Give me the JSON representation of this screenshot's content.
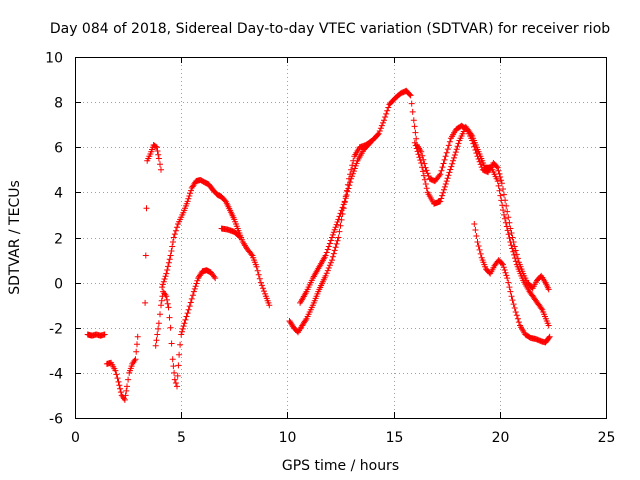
{
  "chart_data": {
    "type": "scatter",
    "title": "Day 084 of 2018, Sidereal Day-to-day VTEC variation (SDTVAR) for receiver riob",
    "xlabel": "GPS time / hours",
    "ylabel": "SDTVAR / TECUs",
    "xlim": [
      0,
      25
    ],
    "ylim": [
      -6,
      10
    ],
    "xticks": [
      0,
      5,
      10,
      15,
      20,
      25
    ],
    "yticks": [
      -6,
      -4,
      -2,
      0,
      2,
      4,
      6,
      8,
      10
    ],
    "grid": true,
    "marker": "+",
    "color": "#ff0000",
    "series": [
      {
        "name": "s01",
        "points": [
          [
            0.6,
            -2.3
          ],
          [
            0.8,
            -2.35
          ],
          [
            1.0,
            -2.3
          ],
          [
            1.2,
            -2.35
          ],
          [
            1.4,
            -2.3
          ]
        ]
      },
      {
        "name": "s02",
        "points": [
          [
            1.5,
            -3.6
          ],
          [
            1.7,
            -3.55
          ],
          [
            1.9,
            -3.9
          ],
          [
            2.05,
            -4.4
          ],
          [
            2.2,
            -5.0
          ],
          [
            2.35,
            -5.2
          ],
          [
            2.45,
            -4.6
          ],
          [
            2.55,
            -4.0
          ],
          [
            2.7,
            -3.6
          ],
          [
            2.85,
            -3.4
          ],
          [
            2.95,
            -2.4
          ]
        ]
      },
      {
        "name": "s03",
        "points": [
          [
            3.3,
            -0.9
          ],
          [
            3.4,
            5.4
          ],
          [
            3.55,
            5.7
          ],
          [
            3.7,
            6.1
          ],
          [
            3.85,
            6.0
          ],
          [
            3.95,
            5.5
          ],
          [
            4.05,
            5.0
          ]
        ]
      },
      {
        "name": "s04",
        "points": [
          [
            3.8,
            -2.8
          ],
          [
            3.95,
            -1.8
          ],
          [
            4.05,
            -1.0
          ],
          [
            4.15,
            -0.4
          ],
          [
            4.3,
            -0.6
          ],
          [
            4.4,
            -1.1
          ],
          [
            4.5,
            -2.0
          ],
          [
            4.6,
            -3.4
          ],
          [
            4.7,
            -4.3
          ],
          [
            4.8,
            -4.6
          ],
          [
            4.9,
            -3.2
          ],
          [
            5.0,
            -2.3
          ],
          [
            5.15,
            -1.8
          ],
          [
            5.35,
            -1.2
          ],
          [
            5.6,
            -0.4
          ],
          [
            5.8,
            0.2
          ],
          [
            6.0,
            0.5
          ],
          [
            6.2,
            0.55
          ],
          [
            6.4,
            0.45
          ],
          [
            6.6,
            0.2
          ]
        ]
      },
      {
        "name": "s05",
        "points": [
          [
            4.1,
            -0.2
          ],
          [
            4.3,
            0.4
          ],
          [
            4.5,
            1.2
          ],
          [
            4.65,
            2.0
          ],
          [
            4.85,
            2.6
          ],
          [
            5.1,
            3.1
          ],
          [
            5.3,
            3.6
          ],
          [
            5.5,
            4.2
          ],
          [
            5.7,
            4.5
          ],
          [
            5.9,
            4.55
          ],
          [
            6.1,
            4.45
          ],
          [
            6.3,
            4.35
          ],
          [
            6.5,
            4.1
          ],
          [
            6.7,
            3.9
          ],
          [
            6.9,
            3.8
          ],
          [
            7.1,
            3.6
          ],
          [
            7.3,
            3.2
          ],
          [
            7.5,
            2.8
          ],
          [
            7.7,
            2.3
          ],
          [
            7.9,
            1.8
          ],
          [
            8.1,
            1.5
          ],
          [
            8.35,
            1.2
          ],
          [
            8.55,
            0.7
          ],
          [
            8.75,
            0.0
          ],
          [
            8.95,
            -0.5
          ],
          [
            9.15,
            -1.0
          ]
        ]
      },
      {
        "name": "s06",
        "points": [
          [
            6.9,
            2.4
          ],
          [
            7.2,
            2.35
          ],
          [
            7.5,
            2.25
          ],
          [
            7.8,
            2.0
          ]
        ]
      },
      {
        "name": "s07",
        "points": [
          [
            10.1,
            -1.7
          ],
          [
            10.3,
            -2.0
          ],
          [
            10.5,
            -2.2
          ],
          [
            10.7,
            -1.9
          ],
          [
            10.9,
            -1.6
          ],
          [
            11.2,
            -1.0
          ],
          [
            11.5,
            -0.3
          ],
          [
            11.8,
            0.3
          ],
          [
            12.1,
            1.0
          ],
          [
            12.4,
            2.0
          ],
          [
            12.65,
            3.3
          ],
          [
            12.9,
            4.6
          ],
          [
            13.15,
            5.6
          ],
          [
            13.4,
            6.0
          ],
          [
            13.7,
            6.1
          ],
          [
            14.0,
            6.3
          ],
          [
            14.3,
            6.6
          ],
          [
            14.55,
            7.2
          ],
          [
            14.8,
            7.9
          ],
          [
            15.1,
            8.2
          ],
          [
            15.35,
            8.4
          ],
          [
            15.6,
            8.5
          ],
          [
            15.8,
            8.3
          ],
          [
            15.95,
            7.2
          ],
          [
            16.1,
            6.1
          ],
          [
            16.3,
            5.8
          ],
          [
            16.5,
            5.1
          ],
          [
            16.7,
            4.6
          ],
          [
            16.95,
            4.5
          ],
          [
            17.2,
            4.8
          ],
          [
            17.45,
            5.6
          ],
          [
            17.7,
            6.4
          ],
          [
            17.95,
            6.8
          ],
          [
            18.2,
            6.95
          ],
          [
            18.45,
            6.8
          ],
          [
            18.7,
            6.3
          ],
          [
            18.95,
            5.6
          ],
          [
            19.2,
            5.0
          ],
          [
            19.45,
            4.9
          ],
          [
            19.7,
            5.3
          ],
          [
            19.9,
            5.1
          ],
          [
            20.1,
            4.4
          ],
          [
            20.3,
            3.4
          ],
          [
            20.5,
            2.4
          ],
          [
            20.7,
            1.6
          ],
          [
            20.9,
            0.9
          ],
          [
            21.1,
            0.4
          ],
          [
            21.3,
            0.0
          ],
          [
            21.55,
            -0.25
          ],
          [
            21.75,
            0.1
          ],
          [
            21.95,
            0.3
          ],
          [
            22.15,
            0.0
          ],
          [
            22.3,
            -0.3
          ]
        ]
      },
      {
        "name": "s08",
        "points": [
          [
            10.6,
            -0.9
          ],
          [
            10.9,
            -0.4
          ],
          [
            11.2,
            0.2
          ],
          [
            11.5,
            0.7
          ],
          [
            11.8,
            1.2
          ],
          [
            12.1,
            2.0
          ],
          [
            12.4,
            2.8
          ],
          [
            12.7,
            3.6
          ],
          [
            13.0,
            4.6
          ],
          [
            13.3,
            5.4
          ],
          [
            13.6,
            5.9
          ],
          [
            13.9,
            6.2
          ]
        ]
      },
      {
        "name": "s09",
        "points": [
          [
            16.0,
            6.2
          ],
          [
            16.3,
            5.3
          ],
          [
            16.6,
            4.0
          ],
          [
            16.9,
            3.5
          ],
          [
            17.2,
            3.6
          ],
          [
            17.5,
            4.5
          ],
          [
            17.8,
            5.4
          ],
          [
            18.1,
            6.3
          ],
          [
            18.4,
            6.9
          ],
          [
            18.7,
            6.5
          ],
          [
            19.0,
            5.8
          ],
          [
            19.3,
            5.1
          ],
          [
            19.6,
            5.1
          ],
          [
            19.9,
            4.5
          ],
          [
            20.2,
            3.0
          ],
          [
            20.5,
            1.8
          ],
          [
            20.8,
            0.8
          ],
          [
            21.1,
            0.1
          ],
          [
            21.4,
            -0.4
          ],
          [
            21.7,
            -0.8
          ],
          [
            22.0,
            -1.2
          ],
          [
            22.3,
            -1.9
          ]
        ]
      },
      {
        "name": "s10",
        "points": [
          [
            18.8,
            2.6
          ],
          [
            18.95,
            1.8
          ],
          [
            19.15,
            1.1
          ],
          [
            19.35,
            0.6
          ],
          [
            19.55,
            0.4
          ],
          [
            19.75,
            0.75
          ],
          [
            19.95,
            1.0
          ],
          [
            20.15,
            0.8
          ],
          [
            20.35,
            0.2
          ],
          [
            20.55,
            -0.6
          ],
          [
            20.75,
            -1.3
          ],
          [
            20.95,
            -1.9
          ],
          [
            21.2,
            -2.3
          ],
          [
            21.45,
            -2.45
          ],
          [
            21.7,
            -2.5
          ],
          [
            21.95,
            -2.6
          ],
          [
            22.15,
            -2.65
          ],
          [
            22.35,
            -2.4
          ]
        ]
      }
    ]
  }
}
